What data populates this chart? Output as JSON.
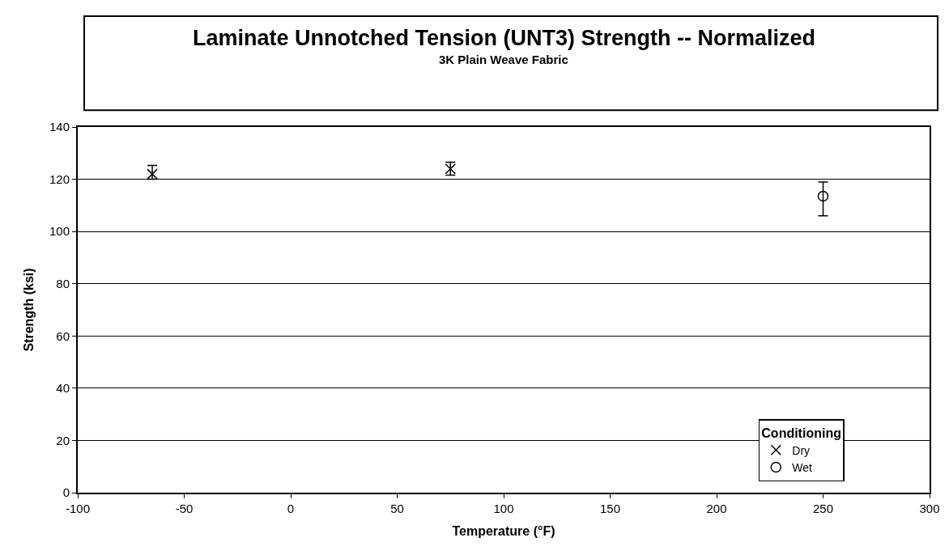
{
  "chart_data": {
    "type": "scatter",
    "title": "Laminate Unnotched Tension (UNT3) Strength -- Normalized",
    "subtitle": "3K Plain Weave Fabric",
    "xlabel": "Temperature (°F)",
    "ylabel": "Strength (ksi)",
    "legend_title": "Conditioning",
    "series": [
      {
        "name": "Dry",
        "color": "#000000",
        "marker": "cross",
        "x": [
          -65,
          75
        ],
        "values": [
          122,
          124
        ],
        "errors": [
          [
            120,
            125.3
          ],
          [
            121.6,
            126.5
          ]
        ]
      },
      {
        "name": "Wet",
        "color": "#000000",
        "marker": "circle",
        "x": [
          250
        ],
        "values": [
          113.5
        ],
        "errors": [
          [
            106,
            118.9
          ]
        ]
      }
    ],
    "xlim": [
      -100,
      300
    ],
    "xticks": [
      -100,
      -50,
      0,
      50,
      100,
      150,
      200,
      250,
      300
    ],
    "ylim": [
      0,
      140
    ],
    "yticks": [
      0,
      20,
      40,
      60,
      80,
      100,
      120,
      140
    ],
    "grid": "y",
    "legend": "bottom right"
  }
}
